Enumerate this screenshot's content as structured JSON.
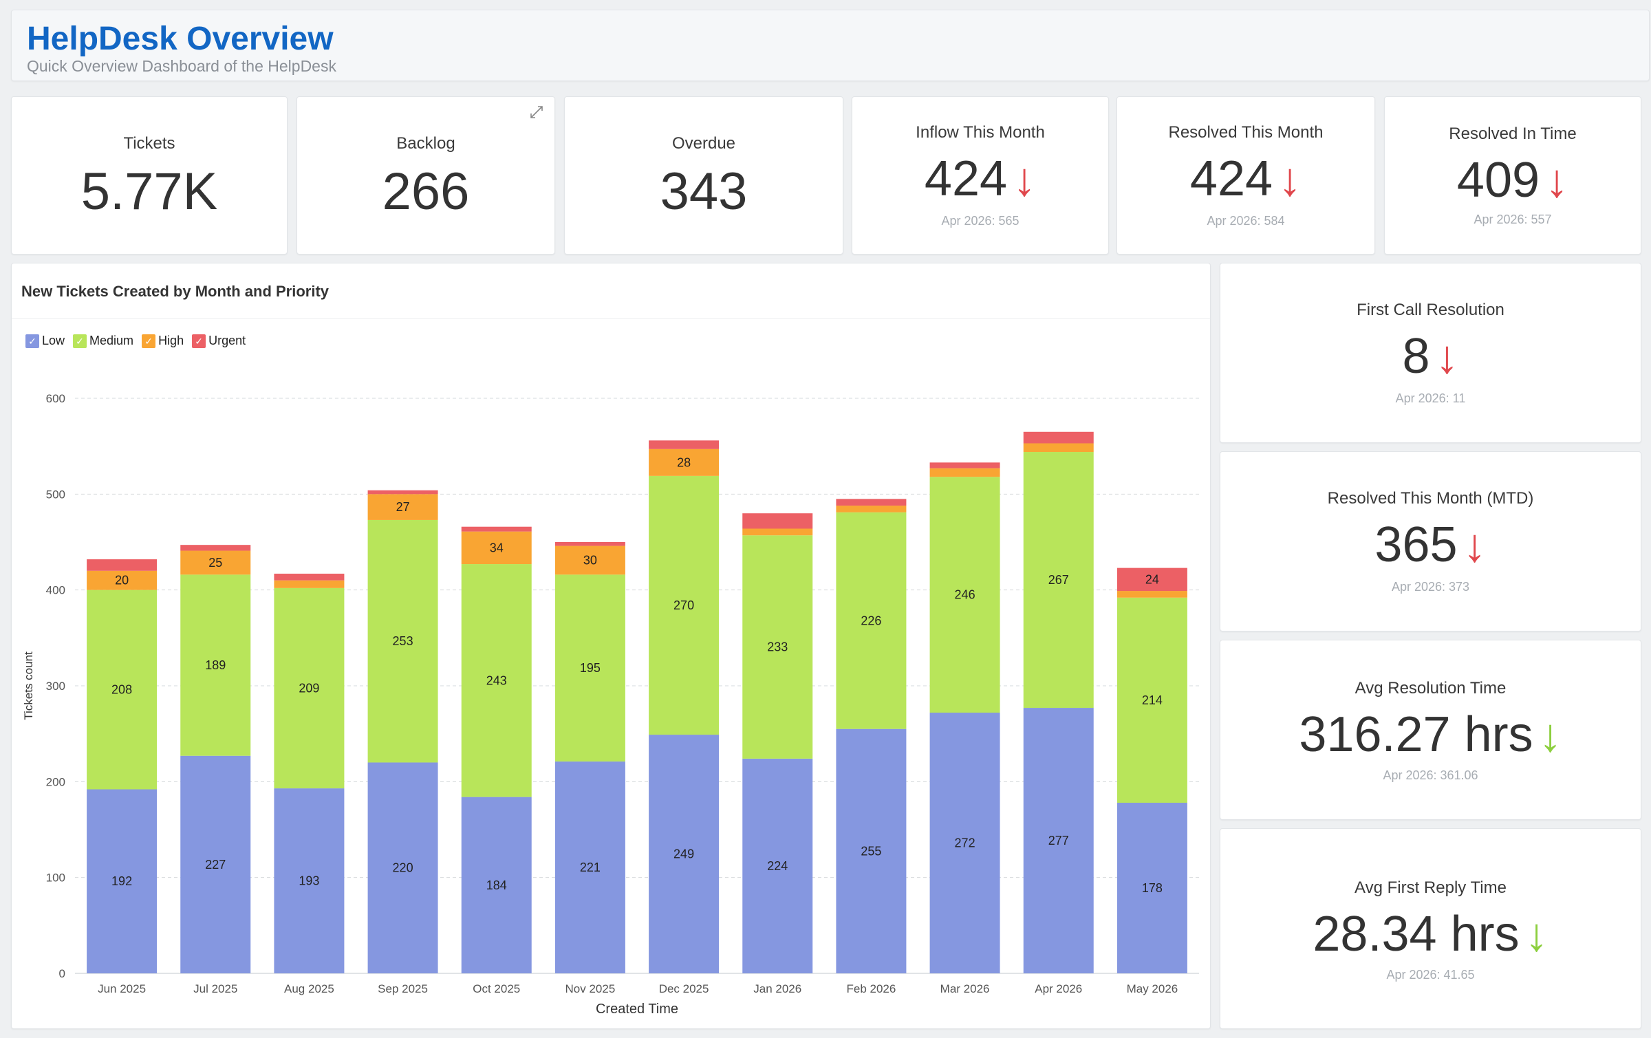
{
  "header": {
    "title": "HelpDesk Overview",
    "subtitle": "Quick Overview Dashboard of the HelpDesk"
  },
  "kpis_top": [
    {
      "label": "Tickets",
      "value": "5.77K"
    },
    {
      "label": "Backlog",
      "value": "266"
    },
    {
      "label": "Overdue",
      "value": "343"
    },
    {
      "label": "Inflow This Month",
      "value": "424",
      "trend": "down",
      "trend_color": "#e0474c",
      "compare": "Apr 2026: 565"
    },
    {
      "label": "Resolved This Month",
      "value": "424",
      "trend": "down",
      "trend_color": "#e0474c",
      "compare": "Apr 2026: 584"
    },
    {
      "label": "Resolved In Time",
      "value": "409",
      "trend": "down",
      "trend_color": "#e0474c",
      "compare": "Apr 2026: 557"
    }
  ],
  "kpis_side": [
    {
      "label": "First Call Resolution",
      "value": "8",
      "trend": "down",
      "trend_color": "#e0474c",
      "compare": "Apr 2026: 11"
    },
    {
      "label": "Resolved This Month (MTD)",
      "value": "365",
      "trend": "down",
      "trend_color": "#e0474c",
      "compare": "Apr 2026: 373"
    },
    {
      "label": "Avg Resolution Time",
      "value": "316.27 hrs",
      "trend": "down",
      "trend_color": "#8dcf3f",
      "compare": "Apr 2026: 361.06"
    },
    {
      "label": "Avg First Reply Time",
      "value": "28.34 hrs",
      "trend": "down",
      "trend_color": "#8dcf3f",
      "compare": "Apr 2026: 41.65"
    }
  ],
  "icons": {
    "trend_down": "↓",
    "expand": "expand-icon",
    "legend_check": "✓"
  },
  "chart_title": "New Tickets Created by Month and Priority",
  "chart_data": {
    "type": "bar",
    "stacked": true,
    "xlabel": "Created Time",
    "ylabel": "Tickets count",
    "ylim": [
      0,
      600
    ],
    "yticks": [
      0,
      100,
      200,
      300,
      400,
      500,
      600
    ],
    "grid": true,
    "legend_position": "top-left",
    "categories": [
      "Jun 2025",
      "Jul 2025",
      "Aug 2025",
      "Sep 2025",
      "Oct 2025",
      "Nov 2025",
      "Dec 2025",
      "Jan 2026",
      "Feb 2026",
      "Mar 2026",
      "Apr 2026",
      "May 2026"
    ],
    "series": [
      {
        "name": "Low",
        "color": "#8597e0",
        "values": [
          192,
          227,
          193,
          220,
          184,
          221,
          249,
          224,
          255,
          272,
          277,
          178
        ]
      },
      {
        "name": "Medium",
        "color": "#b8e55a",
        "values": [
          208,
          189,
          209,
          253,
          243,
          195,
          270,
          233,
          226,
          246,
          267,
          214
        ]
      },
      {
        "name": "High",
        "color": "#f9a533",
        "values": [
          20,
          25,
          8,
          27,
          34,
          30,
          28,
          7,
          7,
          9,
          9,
          7
        ]
      },
      {
        "name": "Urgent",
        "color": "#ec6065",
        "values": [
          12,
          6,
          7,
          4,
          5,
          4,
          9,
          16,
          7,
          6,
          12,
          24
        ]
      }
    ],
    "labeled": {
      "Low": [
        true,
        true,
        true,
        true,
        true,
        true,
        true,
        true,
        true,
        true,
        true,
        true
      ],
      "Medium": [
        true,
        true,
        true,
        true,
        true,
        true,
        true,
        true,
        true,
        true,
        true,
        true
      ],
      "High": [
        true,
        true,
        false,
        true,
        true,
        true,
        true,
        false,
        false,
        false,
        false,
        false
      ],
      "Urgent": [
        false,
        false,
        false,
        false,
        false,
        false,
        false,
        false,
        false,
        false,
        false,
        true
      ]
    }
  }
}
